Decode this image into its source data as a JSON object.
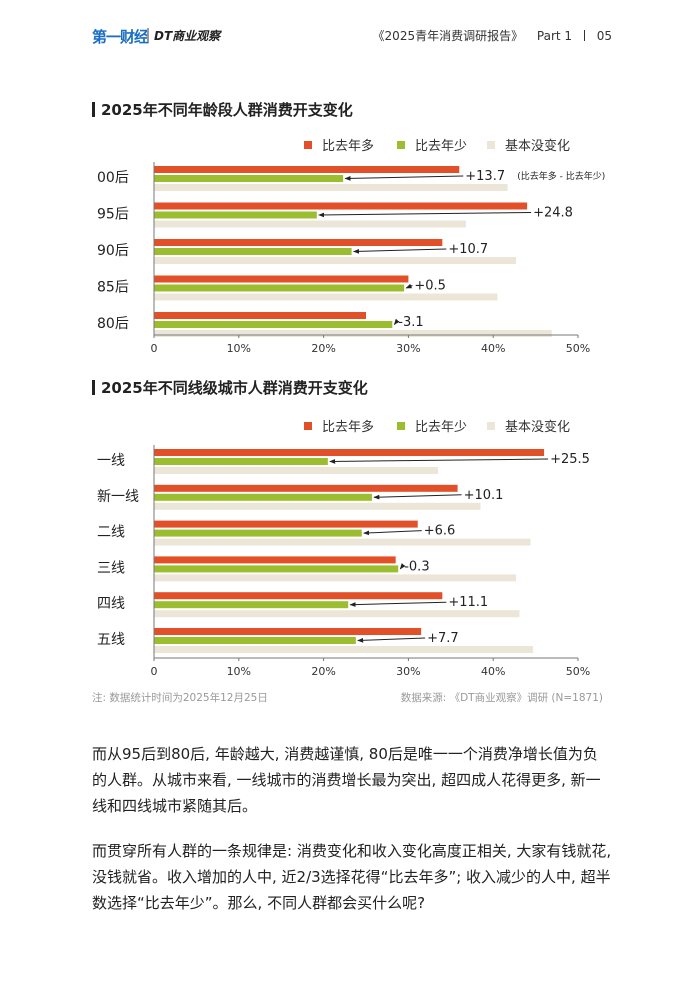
{
  "header": {
    "logo_primary": "第一财经",
    "logo_secondary": "DT商业观察",
    "report_title": "《2025青年消费调研报告》",
    "part": "Part 1",
    "page_number": "05"
  },
  "chart_data": [
    {
      "type": "bar",
      "orientation": "horizontal",
      "title": "2025年不同年龄段人群消费开支变化",
      "categories": [
        "00后",
        "95后",
        "90后",
        "85后",
        "80后"
      ],
      "series": [
        {
          "name": "比去年多",
          "color": "#e2502a",
          "values": [
            36,
            44,
            34,
            30,
            25
          ]
        },
        {
          "name": "比去年少",
          "color": "#9cbd2f",
          "values": [
            22.3,
            19.2,
            23.3,
            29.5,
            28.1
          ]
        },
        {
          "name": "基本没变化",
          "color": "#ece6d8",
          "values": [
            41.7,
            36.8,
            42.7,
            40.5,
            46.9
          ]
        }
      ],
      "annotations": [
        "+13.7",
        "+24.8",
        "+10.7",
        "+0.5",
        "-3.1"
      ],
      "annotation_note": "(比去年多 - 比去年少)",
      "xticks": [
        "0",
        "10%",
        "20%",
        "30%",
        "40%",
        "50%"
      ],
      "xlim": [
        0,
        50
      ]
    },
    {
      "type": "bar",
      "orientation": "horizontal",
      "title": "2025年不同线级城市人群消费开支变化",
      "categories": [
        "一线",
        "新一线",
        "二线",
        "三线",
        "四线",
        "五线"
      ],
      "series": [
        {
          "name": "比去年多",
          "color": "#e2502a",
          "values": [
            46,
            35.8,
            31.1,
            28.5,
            34,
            31.5
          ]
        },
        {
          "name": "比去年少",
          "color": "#9cbd2f",
          "values": [
            20.5,
            25.7,
            24.5,
            28.8,
            22.9,
            23.8
          ]
        },
        {
          "name": "基本没变化",
          "color": "#ece6d8",
          "values": [
            33.5,
            38.5,
            44.4,
            42.7,
            43.1,
            44.7
          ]
        }
      ],
      "annotations": [
        "+25.5",
        "+10.1",
        "+6.6",
        "-0.3",
        "+11.1",
        "+7.7"
      ],
      "xticks": [
        "0",
        "10%",
        "20%",
        "30%",
        "40%",
        "50%"
      ],
      "xlim": [
        0,
        50
      ]
    }
  ],
  "footnotes": {
    "note": "注: 数据统计时间为2025年12月25日",
    "source": "数据来源: 《DT商业观察》调研 (N=1871)"
  },
  "body": {
    "p1": "而从95后到80后, 年龄越大, 消费越谨慎, 80后是唯一一个消费净增长值为负的人群。从城市来看, 一线城市的消费增长最为突出, 超四成人花得更多, 新一线和四线城市紧随其后。",
    "p2": "而贯穿所有人群的一条规律是: 消费变化和收入变化高度正相关, 大家有钱就花, 没钱就省。收入增加的人中, 近2/3选择花得“比去年多”; 收入减少的人中, 超半数选择“比去年少”。那么, 不同人群都会买什么呢?"
  }
}
